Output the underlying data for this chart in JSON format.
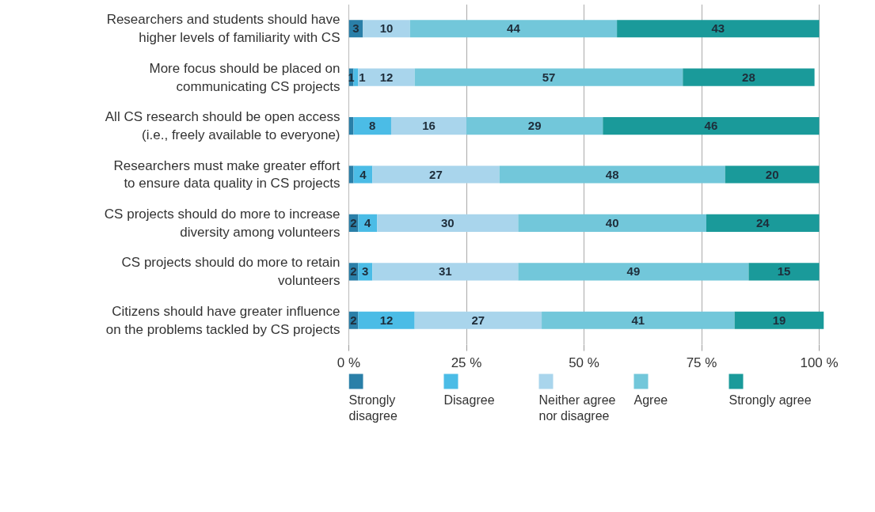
{
  "chart_data": {
    "type": "bar",
    "orientation": "horizontal",
    "stacked": true,
    "categories": [
      "Researchers and students should have higher levels of familiarity with CS",
      "More focus should be placed on communicating CS projects",
      "All CS research should be open access (i.e., freely available to everyone)",
      "Researchers must make greater effort to ensure data quality in CS projects",
      "CS projects should do more to increase diversity among volunteers",
      "CS projects should do more to retain volunteers",
      "Citizens should have greater influence on the problems tackled by CS projects"
    ],
    "series": [
      {
        "name": "Strongly disagree",
        "color": "#2a7fa8",
        "values": [
          3,
          1,
          1,
          1,
          2,
          2,
          2
        ],
        "value_labels": [
          "3",
          "1",
          null,
          null,
          "2",
          "2",
          "2"
        ]
      },
      {
        "name": "Disagree",
        "color": "#4bbce6",
        "values": [
          0,
          1,
          8,
          4,
          4,
          3,
          12
        ],
        "value_labels": [
          null,
          "1",
          "8",
          "4",
          "4",
          "3",
          "12"
        ]
      },
      {
        "name": "Neither agree nor disagree",
        "color": "#a9d5ec",
        "values": [
          10,
          12,
          16,
          27,
          30,
          31,
          27
        ],
        "value_labels": [
          "10",
          "12",
          "16",
          "27",
          "30",
          "31",
          "27"
        ]
      },
      {
        "name": "Agree",
        "color": "#72c7da",
        "values": [
          44,
          57,
          29,
          48,
          40,
          49,
          41
        ],
        "value_labels": [
          "44",
          "57",
          "29",
          "48",
          "40",
          "49",
          "41"
        ]
      },
      {
        "name": "Strongly agree",
        "color": "#1a9a9a",
        "values": [
          43,
          28,
          46,
          20,
          24,
          15,
          19
        ],
        "value_labels": [
          "43",
          "28",
          "46",
          "20",
          "24",
          "15",
          "19"
        ]
      }
    ],
    "xlim": [
      0,
      101
    ],
    "xticks": [
      {
        "value": 0,
        "label": "0 %"
      },
      {
        "value": 25,
        "label": "25 %"
      },
      {
        "value": 50,
        "label": "50 %"
      },
      {
        "value": 75,
        "label": "75 %"
      },
      {
        "value": 100,
        "label": "100 %"
      }
    ],
    "grid": "x",
    "legend": "bottom"
  }
}
